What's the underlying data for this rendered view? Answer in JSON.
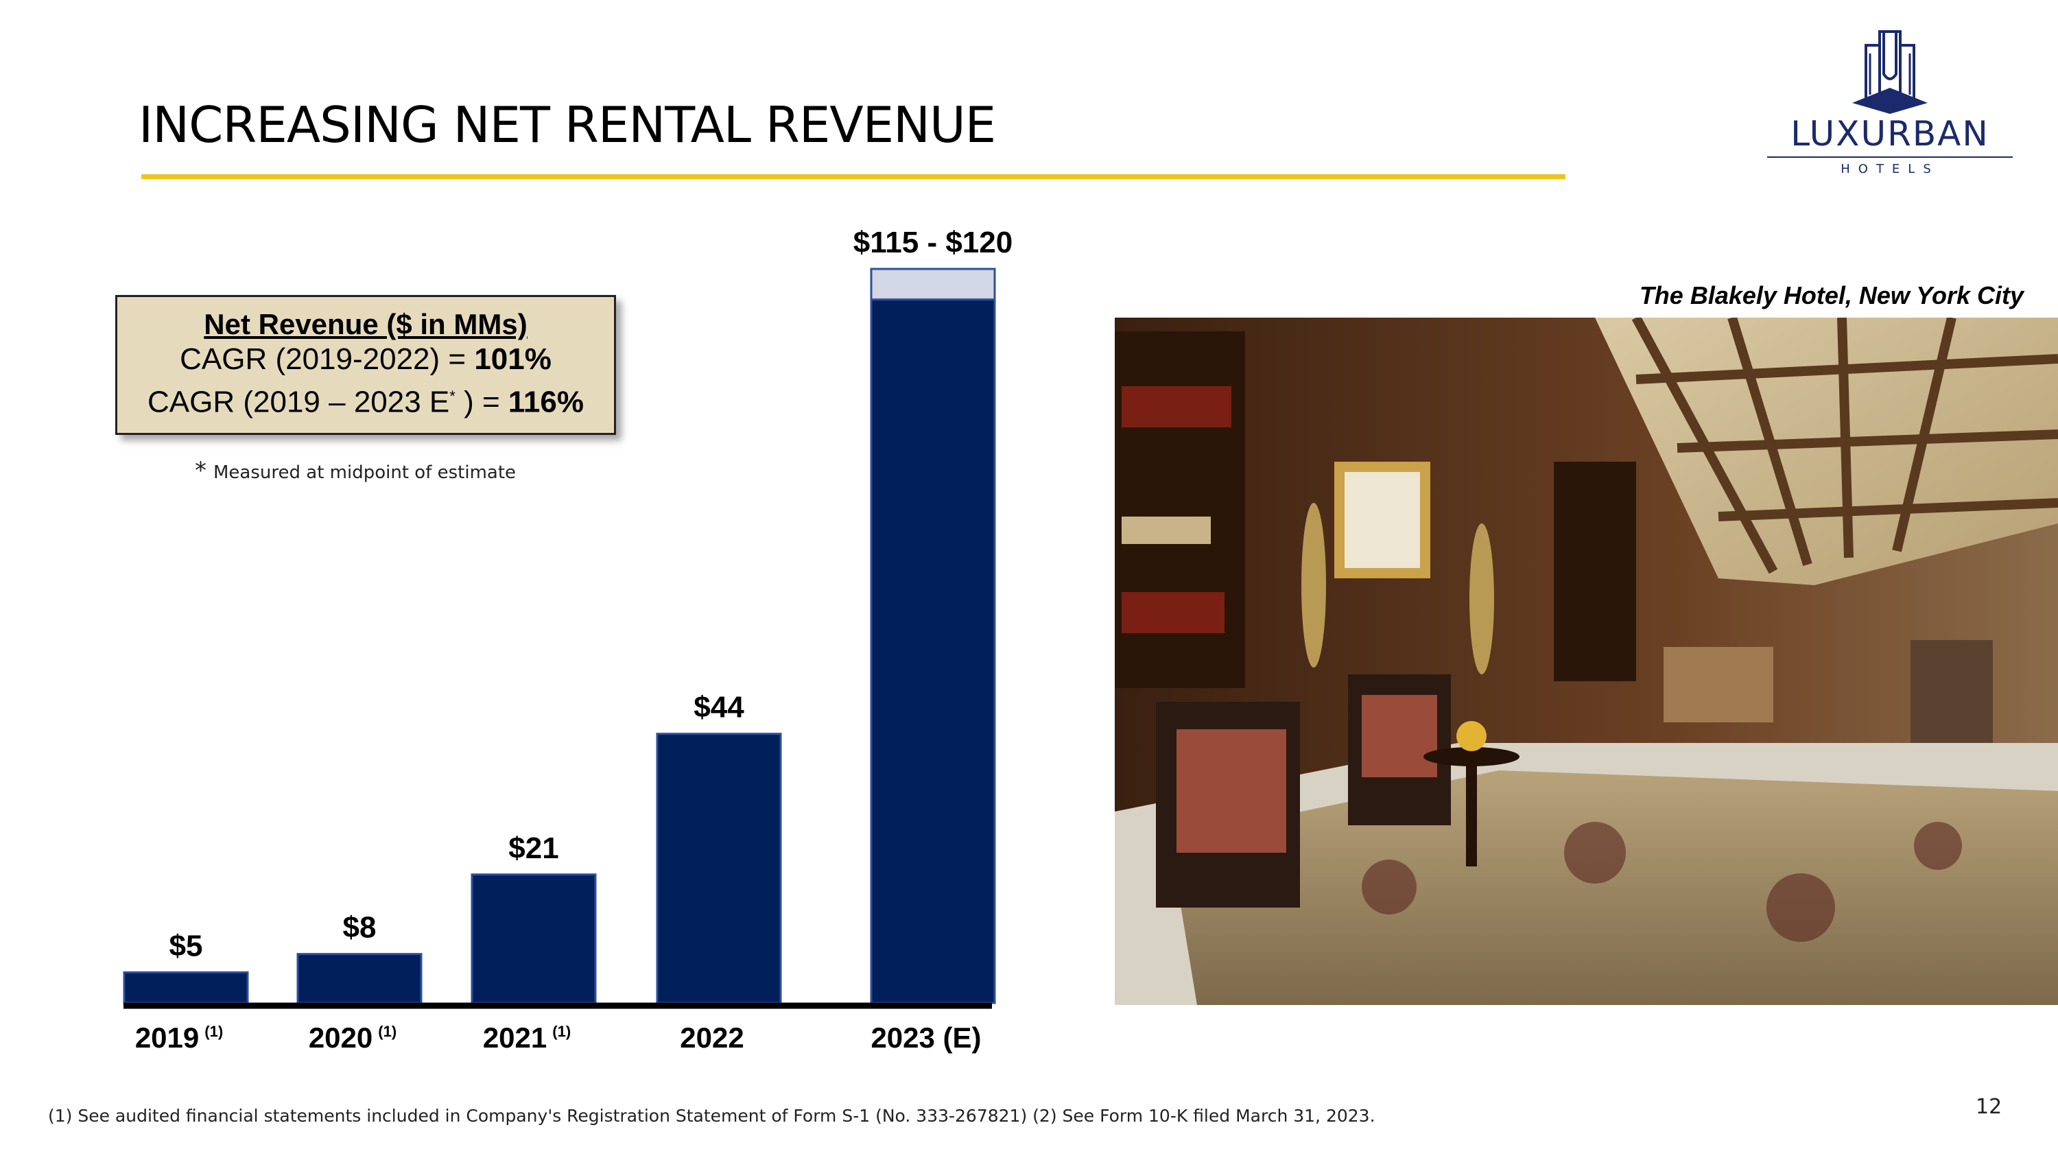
{
  "slide": {
    "title": "INCREASING NET RENTAL REVENUE",
    "page_number": "12",
    "footer_note": "(1) See audited financial statements included in Company's Registration Statement of Form S-1 (No. 333-267821)     (2) See Form 10-K filed March 31, 2023.",
    "accent_color": "#f2c21a"
  },
  "logo": {
    "wordmark": "LUXURBAN",
    "subtitle": "HOTELS",
    "color": "#1a2a6c",
    "icon": "building-crest-icon"
  },
  "cagr_box": {
    "title": "Net Revenue ($ in MMs)",
    "line1_prefix": "CAGR (2019-2022) = ",
    "line1_value": "101%",
    "line2_prefix": "CAGR (2019 – 2023 E",
    "line2_sup": "*",
    "line2_suffix": " ) = ",
    "line2_value": "116%"
  },
  "footnote": {
    "marker": "*",
    "text": "Measured at midpoint of estimate"
  },
  "photo": {
    "caption": "The Blakely Hotel, New York City"
  },
  "chart_data": {
    "type": "bar",
    "categories": [
      "2019",
      "2020",
      "2021",
      "2022",
      "2023 (E)"
    ],
    "category_notes": [
      "(1)",
      "(1)",
      "(1)",
      "",
      ""
    ],
    "values": [
      5,
      8,
      21,
      44,
      115
    ],
    "range_upper": [
      null,
      null,
      null,
      null,
      120
    ],
    "data_labels": [
      "$5",
      "$8",
      "$21",
      "$44",
      "$115 - $120"
    ],
    "ylim": [
      0,
      120
    ],
    "bar_color": "#001f5b",
    "range_color": "#d3d7e3",
    "grid": false
  }
}
